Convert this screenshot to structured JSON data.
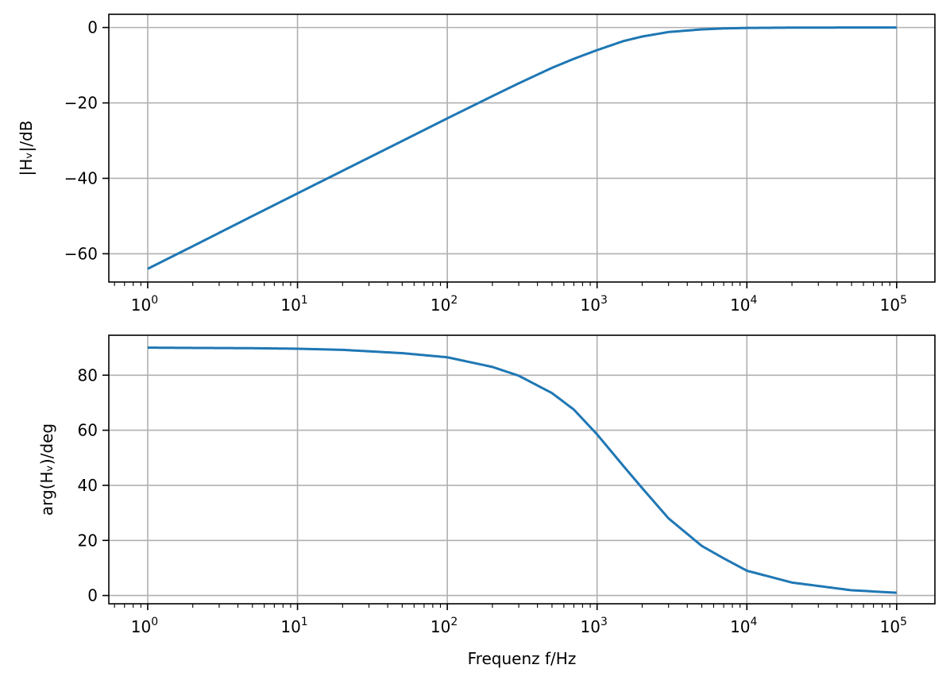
{
  "chart_data": [
    {
      "type": "line",
      "xscale": "log",
      "xlim": [
        0.55,
        180000
      ],
      "ylim": [
        -67.5,
        3.5
      ],
      "grid": true,
      "xlabel": "",
      "ylabel": "|Hᵥ|/dB",
      "xticks": [
        1,
        10,
        100,
        1000,
        10000,
        100000
      ],
      "xtick_labels": [
        {
          "base": "10",
          "exp": "0"
        },
        {
          "base": "10",
          "exp": "1"
        },
        {
          "base": "10",
          "exp": "2"
        },
        {
          "base": "10",
          "exp": "3"
        },
        {
          "base": "10",
          "exp": "4"
        },
        {
          "base": "10",
          "exp": "5"
        }
      ],
      "yticks": [
        0,
        -20,
        -40,
        -60
      ],
      "ytick_labels": [
        "0",
        "−20",
        "−40",
        "−60"
      ],
      "series": [
        {
          "color": "#1f77b4",
          "x": [
            1,
            2,
            5,
            10,
            20,
            50,
            100,
            200,
            300,
            500,
            700,
            1000,
            1500,
            2000,
            3000,
            5000,
            7000,
            10000,
            20000,
            50000,
            100000
          ],
          "y": [
            -64,
            -58,
            -50,
            -44,
            -38,
            -30.1,
            -24.1,
            -18.2,
            -14.8,
            -10.7,
            -8.3,
            -6,
            -3.6,
            -2.4,
            -1.2,
            -0.5,
            -0.25,
            -0.12,
            -0.03,
            -0.01,
            0
          ]
        }
      ]
    },
    {
      "type": "line",
      "xscale": "log",
      "xlim": [
        0.55,
        180000
      ],
      "ylim": [
        -3,
        94.5
      ],
      "grid": true,
      "xlabel": "Frequenz f/Hz",
      "ylabel": "arg(Hᵥ)/deg",
      "xticks": [
        1,
        10,
        100,
        1000,
        10000,
        100000
      ],
      "xtick_labels": [
        {
          "base": "10",
          "exp": "0"
        },
        {
          "base": "10",
          "exp": "1"
        },
        {
          "base": "10",
          "exp": "2"
        },
        {
          "base": "10",
          "exp": "3"
        },
        {
          "base": "10",
          "exp": "4"
        },
        {
          "base": "10",
          "exp": "5"
        }
      ],
      "yticks": [
        0,
        20,
        40,
        60,
        80
      ],
      "ytick_labels": [
        "0",
        "20",
        "40",
        "60",
        "80"
      ],
      "series": [
        {
          "color": "#1f77b4",
          "x": [
            1,
            2,
            5,
            10,
            20,
            50,
            100,
            200,
            300,
            500,
            700,
            1000,
            1500,
            2000,
            3000,
            5000,
            7000,
            10000,
            20000,
            50000,
            100000
          ],
          "y": [
            90,
            89.9,
            89.8,
            89.6,
            89.2,
            88,
            86.5,
            83,
            79.8,
            73.5,
            67.5,
            58.5,
            47,
            39,
            28,
            18,
            13.5,
            9,
            4.7,
            1.9,
            1
          ]
        }
      ]
    }
  ]
}
